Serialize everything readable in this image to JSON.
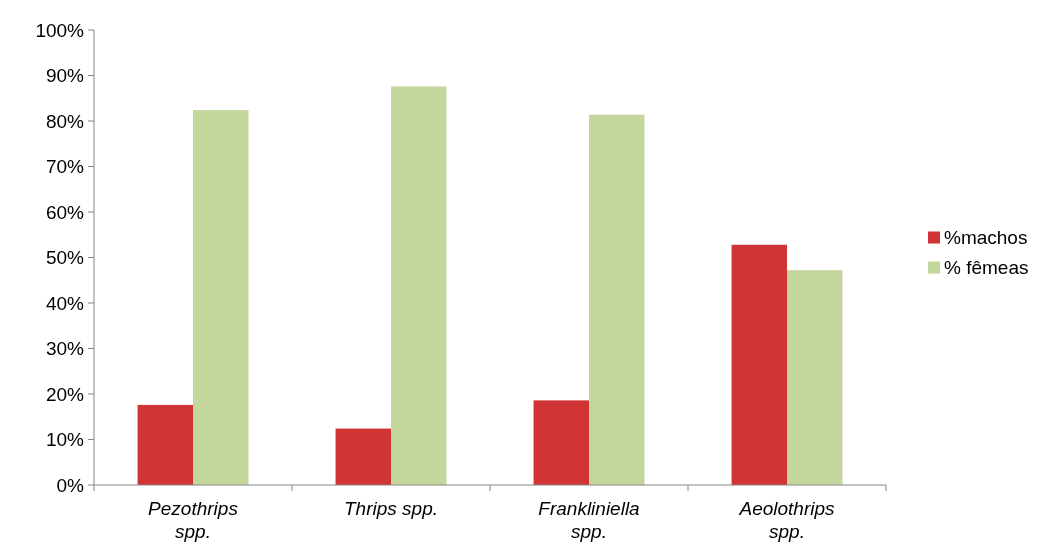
{
  "chart_data": {
    "type": "bar",
    "categories": [
      "Pezothrips spp.",
      "Thrips spp.",
      "Frankliniella spp.",
      "Aeolothrips spp."
    ],
    "series": [
      {
        "name": "%machos",
        "color": "#d03434",
        "values": [
          17.6,
          12.4,
          18.6,
          52.8
        ]
      },
      {
        "name": "% fêmeas",
        "color": "#c3d69b",
        "values": [
          82.4,
          87.6,
          81.4,
          47.2
        ]
      }
    ],
    "ylim": [
      0,
      100
    ],
    "yticks": [
      {
        "value": 0,
        "label": "0%"
      },
      {
        "value": 10,
        "label": "10%"
      },
      {
        "value": 20,
        "label": "20%"
      },
      {
        "value": 30,
        "label": "30%"
      },
      {
        "value": 40,
        "label": "40%"
      },
      {
        "value": 50,
        "label": "50%"
      },
      {
        "value": 60,
        "label": "60%"
      },
      {
        "value": 70,
        "label": "70%"
      },
      {
        "value": 80,
        "label": "80%"
      },
      {
        "value": 90,
        "label": "90%"
      },
      {
        "value": 100,
        "label": "100%"
      }
    ],
    "grid": false,
    "legend": "right"
  }
}
